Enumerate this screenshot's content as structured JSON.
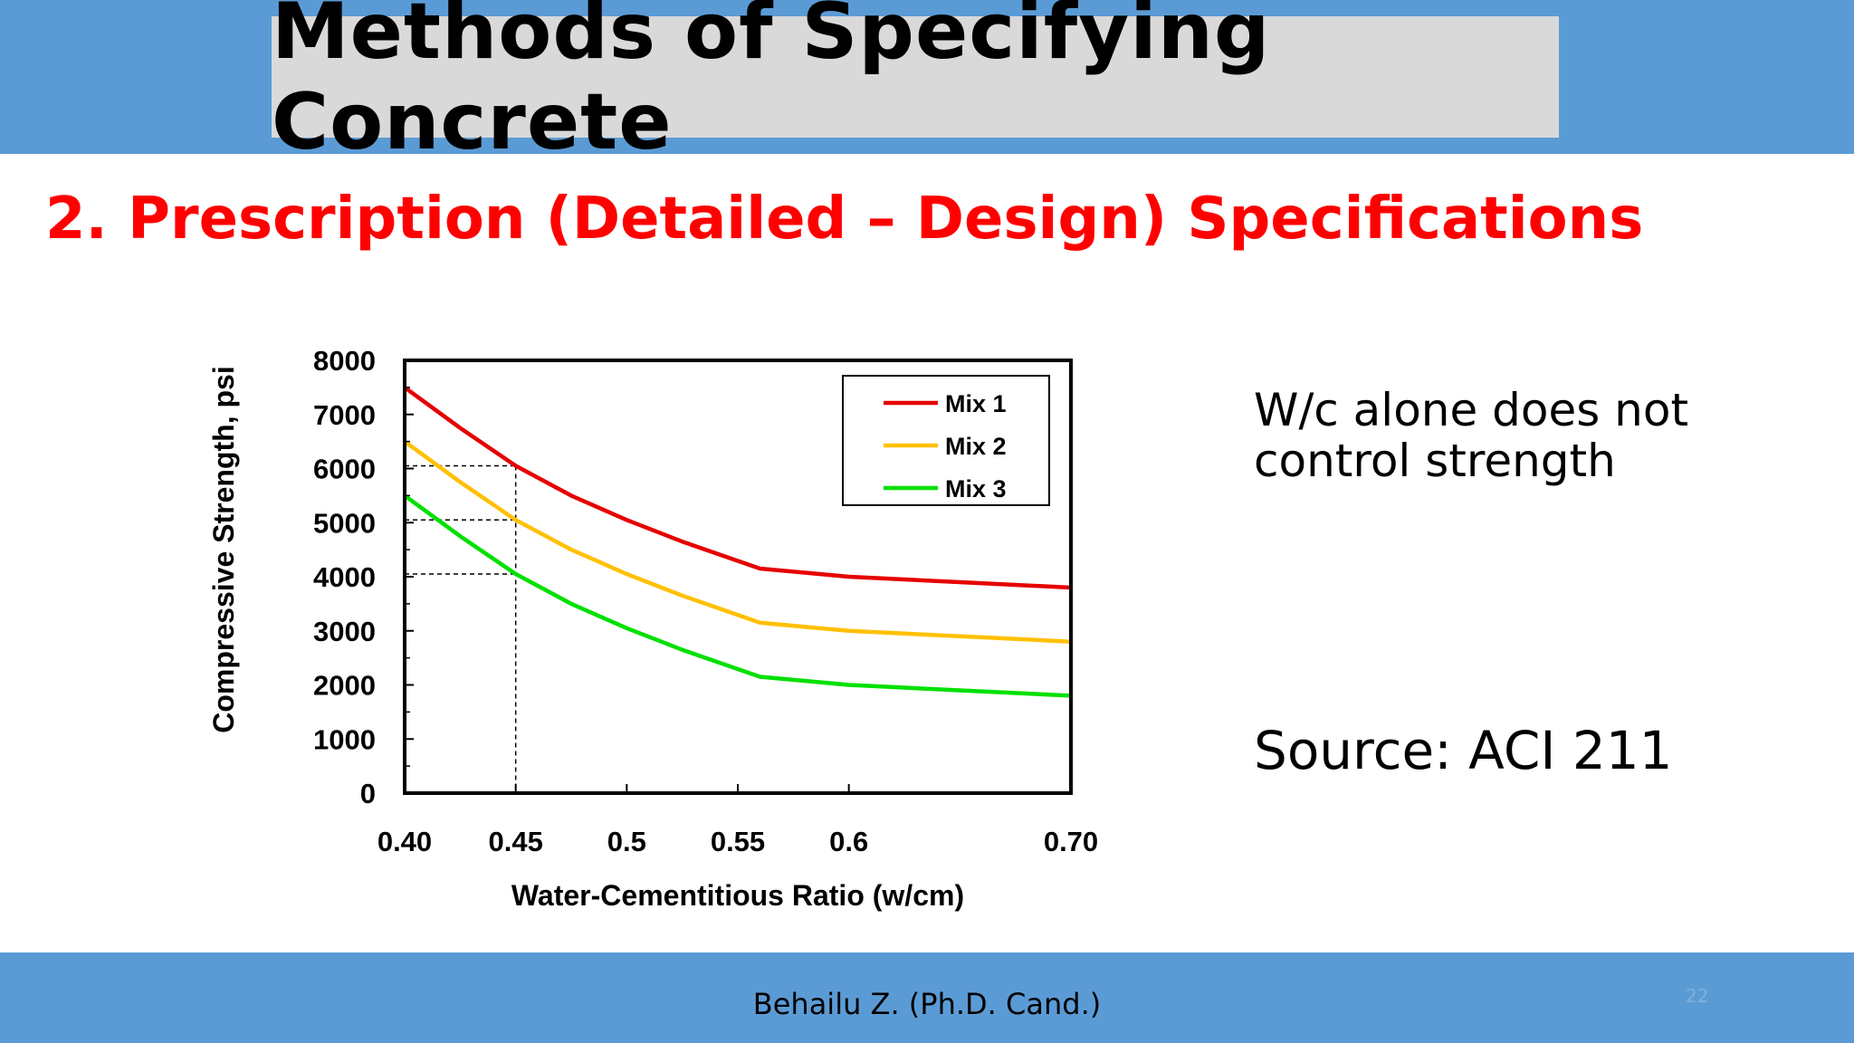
{
  "slide": {
    "title": "Methods of Specifying Concrete",
    "subtitle": "2. Prescription (Detailed – Design) Specifications",
    "note_lines": [
      "W/c alone does not",
      "control strength"
    ],
    "source": "Source: ACI 211",
    "footer": "Behailu Z. (Ph.D. Cand.)",
    "page_number": "22",
    "colors": {
      "band": "#5b9bd5",
      "title_box": "#d9d9d9",
      "subtitle": "#ff0000"
    }
  },
  "chart_data": {
    "type": "line",
    "xlabel": "Water-Cementitious Ratio (w/cm)",
    "ylabel": "Compressive Strength, psi",
    "xlim": [
      0.4,
      0.7
    ],
    "ylim": [
      0,
      8000
    ],
    "xticks": [
      0.4,
      0.45,
      0.5,
      0.55,
      0.6,
      0.7
    ],
    "xtick_labels": [
      "0.40",
      "0.45",
      "0.5",
      "0.55",
      "0.6",
      "0.70"
    ],
    "yticks": [
      0,
      1000,
      2000,
      3000,
      4000,
      5000,
      6000,
      7000,
      8000
    ],
    "ytick_labels": [
      "0",
      "1000",
      "2000",
      "3000",
      "4000",
      "5000",
      "6000",
      "7000",
      "8000"
    ],
    "legend_position": "top-right",
    "grid": false,
    "series": [
      {
        "name": "Mix 1",
        "color": "#e60000",
        "x": [
          0.4,
          0.425,
          0.45,
          0.475,
          0.5,
          0.525,
          0.56,
          0.6,
          0.65,
          0.7
        ],
        "y": [
          7500,
          6750,
          6050,
          5500,
          5050,
          4650,
          4150,
          4000,
          3900,
          3800
        ]
      },
      {
        "name": "Mix 2",
        "color": "#ffc000",
        "x": [
          0.4,
          0.425,
          0.45,
          0.475,
          0.5,
          0.525,
          0.56,
          0.6,
          0.65,
          0.7
        ],
        "y": [
          6500,
          5750,
          5050,
          4500,
          4050,
          3650,
          3150,
          3000,
          2900,
          2800
        ]
      },
      {
        "name": "Mix 3",
        "color": "#00e000",
        "x": [
          0.4,
          0.425,
          0.45,
          0.475,
          0.5,
          0.525,
          0.56,
          0.6,
          0.65,
          0.7
        ],
        "y": [
          5500,
          4750,
          4050,
          3500,
          3050,
          2650,
          2150,
          2000,
          1900,
          1800
        ]
      }
    ],
    "reference_lines": {
      "x": 0.45,
      "y": [
        6050,
        5050,
        4050
      ]
    }
  }
}
